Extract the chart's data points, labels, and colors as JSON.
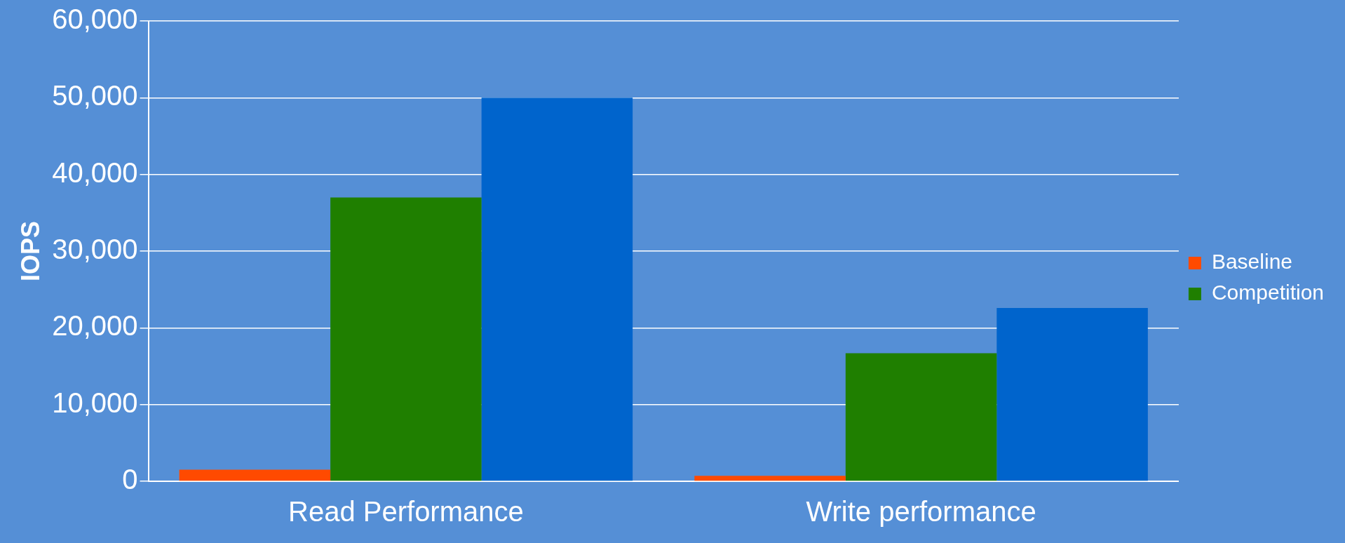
{
  "chart_data": {
    "type": "bar",
    "ylabel": "IOPS",
    "categories": [
      "Read Performance",
      "Write performance"
    ],
    "series": [
      {
        "name": "Baseline",
        "color": "#ff4a00",
        "values": [
          1500,
          700
        ]
      },
      {
        "name": "Competition",
        "color": "#1f7f00",
        "values": [
          37000,
          16700
        ]
      },
      {
        "color": "#0064cc",
        "values": [
          50000,
          22600
        ]
      }
    ],
    "ylim": [
      0,
      60000
    ],
    "yticks": [
      0,
      {
        "value": 10000,
        "label": "10,000"
      },
      {
        "value": 20000,
        "label": "20,000"
      },
      {
        "value": 30000,
        "label": "30,000"
      },
      {
        "value": 40000,
        "label": "40,000"
      },
      {
        "value": 50000,
        "label": "50,000"
      },
      {
        "value": 60000,
        "label": "60,000"
      }
    ],
    "grid": "y",
    "legend": "right"
  }
}
